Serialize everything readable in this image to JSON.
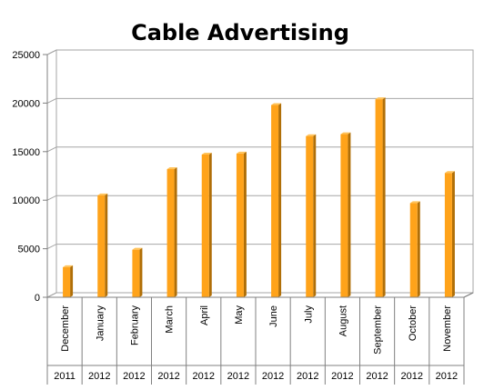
{
  "chart_data": {
    "type": "bar",
    "title": "Cable Advertising",
    "xlabel": "",
    "ylabel": "",
    "ylim": [
      0,
      25000
    ],
    "yticks": [
      0,
      5000,
      10000,
      15000,
      20000,
      25000
    ],
    "grid": true,
    "legend": "none",
    "categories": [
      "December",
      "January",
      "February",
      "March",
      "April",
      "May",
      "June",
      "July",
      "August",
      "September",
      "October",
      "November"
    ],
    "years": [
      "2011",
      "2012",
      "2012",
      "2012",
      "2012",
      "2012",
      "2012",
      "2012",
      "2012",
      "2012",
      "2012",
      "2012"
    ],
    "series": [
      {
        "values": [
          3100,
          10500,
          4900,
          13200,
          14700,
          14800,
          19800,
          16600,
          16800,
          20400,
          9700,
          12800
        ]
      }
    ],
    "colors": {
      "bar_front": "#ffa31a",
      "bar_side": "#b06f08",
      "bar_top": "#ffc35a",
      "grid": "#a6a6a6",
      "axis": "#808080"
    }
  }
}
